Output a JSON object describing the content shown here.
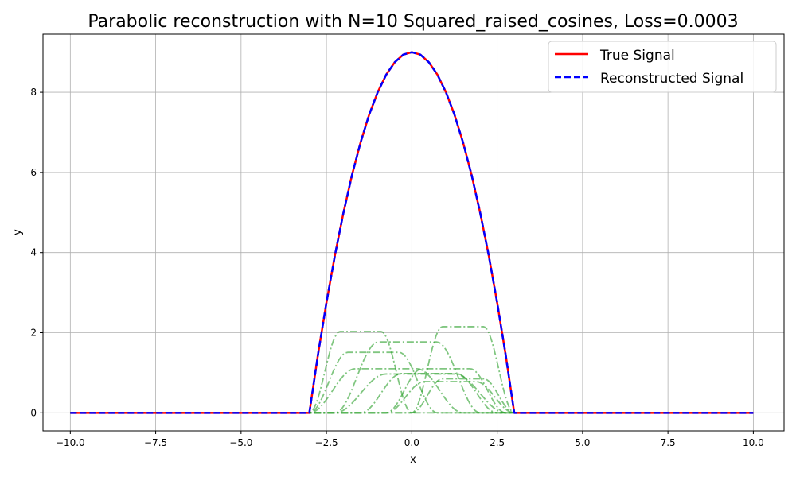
{
  "chart_data": {
    "type": "line",
    "title": "Parabolic reconstruction with N=10 Squared_raised_cosines, Loss=0.0003",
    "xlabel": "x",
    "ylabel": "y",
    "xlim": [
      -10.8,
      10.9
    ],
    "ylim": [
      -0.45,
      9.45
    ],
    "xticks": [
      -10.0,
      -7.5,
      -5.0,
      -2.5,
      0.0,
      2.5,
      5.0,
      7.5,
      10.0
    ],
    "xtick_labels": [
      "−10.0",
      "−7.5",
      "−5.0",
      "−2.5",
      "0.0",
      "2.5",
      "5.0",
      "7.5",
      "10.0"
    ],
    "yticks": [
      0,
      2,
      4,
      6,
      8
    ],
    "ytick_labels": [
      "0",
      "2",
      "4",
      "6",
      "8"
    ],
    "grid": true,
    "legend_position": "top-right",
    "series": [
      {
        "name": "True Signal",
        "color": "#ff0000",
        "style": "solid",
        "x": [
          -10.0,
          -9.5,
          -9.0,
          -8.5,
          -8.0,
          -7.5,
          -7.0,
          -6.5,
          -6.0,
          -5.5,
          -5.0,
          -4.5,
          -4.0,
          -3.5,
          -3.0,
          -2.75,
          -2.5,
          -2.25,
          -2.0,
          -1.75,
          -1.5,
          -1.25,
          -1.0,
          -0.75,
          -0.5,
          -0.25,
          0.0,
          0.25,
          0.5,
          0.75,
          1.0,
          1.25,
          1.5,
          1.75,
          2.0,
          2.25,
          2.5,
          2.75,
          3.0,
          3.5,
          4.0,
          4.5,
          5.0,
          5.5,
          6.0,
          6.5,
          7.0,
          7.5,
          8.0,
          8.5,
          9.0,
          9.5,
          10.0
        ],
        "y": [
          0,
          0,
          0,
          0,
          0,
          0,
          0,
          0,
          0,
          0,
          0,
          0,
          0,
          0,
          0,
          1.44,
          2.75,
          3.94,
          5.0,
          5.94,
          6.75,
          7.44,
          8.0,
          8.44,
          8.75,
          8.94,
          9.0,
          8.94,
          8.75,
          8.44,
          8.0,
          7.44,
          6.75,
          5.94,
          5.0,
          3.94,
          2.75,
          1.44,
          0,
          0,
          0,
          0,
          0,
          0,
          0,
          0,
          0,
          0,
          0,
          0,
          0,
          0,
          0
        ]
      },
      {
        "name": "Reconstructed Signal",
        "color": "#0000ff",
        "style": "dashed",
        "x": [
          -10.0,
          -9.5,
          -9.0,
          -8.5,
          -8.0,
          -7.5,
          -7.0,
          -6.5,
          -6.0,
          -5.5,
          -5.0,
          -4.5,
          -4.0,
          -3.5,
          -3.0,
          -2.75,
          -2.5,
          -2.25,
          -2.0,
          -1.75,
          -1.5,
          -1.25,
          -1.0,
          -0.75,
          -0.5,
          -0.25,
          0.0,
          0.25,
          0.5,
          0.75,
          1.0,
          1.25,
          1.5,
          1.75,
          2.0,
          2.25,
          2.5,
          2.75,
          3.0,
          3.5,
          4.0,
          4.5,
          5.0,
          5.5,
          6.0,
          6.5,
          7.0,
          7.5,
          8.0,
          8.5,
          9.0,
          9.5,
          10.0
        ],
        "y": [
          0,
          0,
          0,
          0,
          0,
          0,
          0,
          0,
          0,
          0,
          0,
          0,
          0,
          0,
          0,
          1.44,
          2.75,
          3.94,
          5.0,
          5.94,
          6.75,
          7.44,
          8.0,
          8.44,
          8.75,
          8.94,
          9.0,
          8.94,
          8.75,
          8.44,
          8.0,
          7.44,
          6.75,
          5.94,
          5.0,
          3.94,
          2.75,
          1.44,
          0,
          0,
          0,
          0,
          0,
          0,
          0,
          0,
          0,
          0,
          0,
          0,
          0,
          0,
          0
        ]
      }
    ],
    "basis_functions": {
      "color": "#2ca02c",
      "style": "dashdot",
      "opacity": 0.6,
      "items": [
        {
          "start": -3.0,
          "end": 0.0,
          "amplitude": 2.03
        },
        {
          "start": -3.0,
          "end": 0.75,
          "amplitude": 1.51
        },
        {
          "start": -3.0,
          "end": 1.5,
          "amplitude": 1.1
        },
        {
          "start": -2.25,
          "end": 2.0,
          "amplitude": 1.77
        },
        {
          "start": -1.5,
          "end": 2.5,
          "amplitude": 0.98
        },
        {
          "start": -2.25,
          "end": 2.75,
          "amplitude": 0.97
        },
        {
          "start": -0.75,
          "end": 2.75,
          "amplitude": 1.1
        },
        {
          "start": 0.0,
          "end": 3.0,
          "amplitude": 2.15
        },
        {
          "start": 0.0,
          "end": 3.0,
          "amplitude": 0.85
        },
        {
          "start": -0.75,
          "end": 3.0,
          "amplitude": 0.78
        }
      ]
    }
  }
}
